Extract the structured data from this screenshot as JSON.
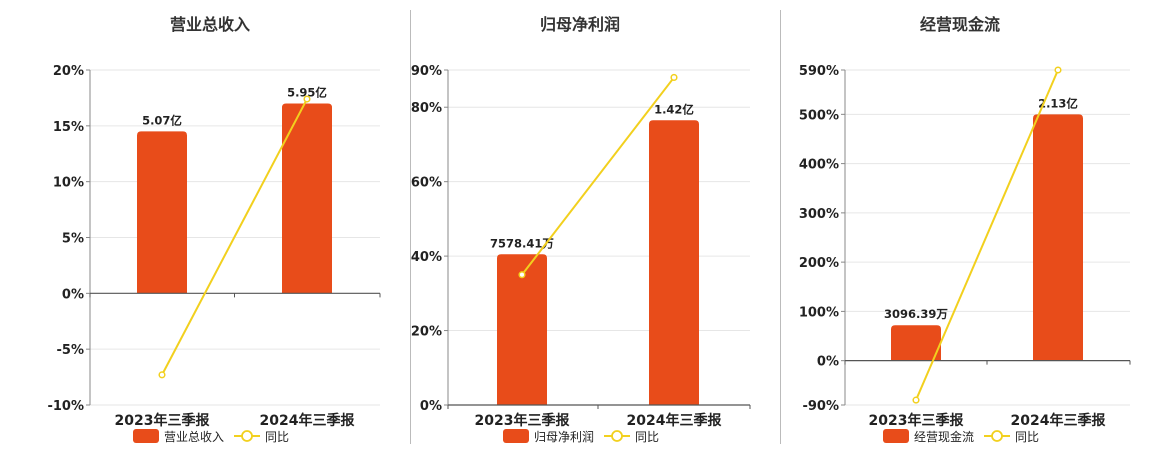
{
  "chart_data": [
    {
      "type": "bar",
      "title": "营业总收入",
      "categories": [
        "2023年三季报",
        "2024年三季报"
      ],
      "series": [
        {
          "name": "营业总收入",
          "type": "bar",
          "axis": "left",
          "values": [
            14.5,
            17.0
          ],
          "labels": [
            "5.07亿",
            "5.95亿"
          ]
        },
        {
          "name": "同比",
          "type": "line",
          "axis": "left",
          "values": [
            -7.3,
            17.4
          ]
        }
      ],
      "yticks": [
        "20%",
        "15%",
        "10%",
        "5%",
        "0%",
        "-5%",
        "-10%"
      ],
      "ylim": [
        -10,
        20
      ],
      "ystep": 5,
      "colors": {
        "bar": "#e84c1a",
        "line": "#f2d01e"
      }
    },
    {
      "type": "bar",
      "title": "归母净利润",
      "categories": [
        "2023年三季报",
        "2024年三季报"
      ],
      "series": [
        {
          "name": "归母净利润",
          "type": "bar",
          "axis": "left",
          "values": [
            40.5,
            76.5
          ],
          "labels": [
            "7578.41万",
            "1.42亿"
          ]
        },
        {
          "name": "同比",
          "type": "line",
          "axis": "left",
          "values": [
            35.0,
            88.0
          ]
        }
      ],
      "yticks": [
        "90%",
        "80%",
        "60%",
        "40%",
        "20%",
        "0%"
      ],
      "ytick_values": [
        90,
        80,
        60,
        40,
        20,
        0
      ],
      "ylim": [
        0,
        90
      ],
      "colors": {
        "bar": "#e84c1a",
        "line": "#f2d01e"
      }
    },
    {
      "type": "bar",
      "title": "经营现金流",
      "categories": [
        "2023年三季报",
        "2024年三季报"
      ],
      "series": [
        {
          "name": "经营现金流",
          "type": "bar",
          "axis": "left",
          "values": [
            72,
            500
          ],
          "labels": [
            "3096.39万",
            "2.13亿"
          ]
        },
        {
          "name": "同比",
          "type": "line",
          "axis": "left",
          "values": [
            -80,
            590
          ]
        }
      ],
      "yticks": [
        "590%",
        "500%",
        "400%",
        "300%",
        "200%",
        "100%",
        "0%",
        "-90%"
      ],
      "ytick_values": [
        590,
        500,
        400,
        300,
        200,
        100,
        0,
        -90
      ],
      "ylim": [
        -90,
        590
      ],
      "colors": {
        "bar": "#e84c1a",
        "line": "#f2d01e"
      }
    }
  ]
}
